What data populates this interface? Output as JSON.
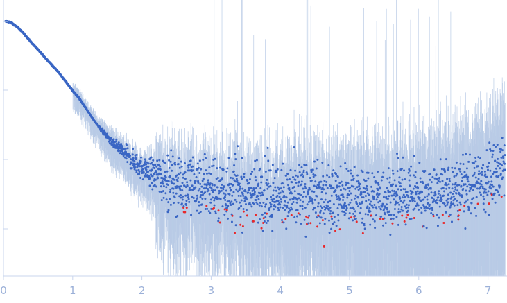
{
  "chart_data": {
    "type": "scatter",
    "title": "",
    "xlabel": "",
    "ylabel": "",
    "y_scale": "log",
    "grid": false,
    "legend": "none",
    "xlim": [
      0,
      7.25
    ],
    "ylim_decades": [
      -3.7,
      0.3
    ],
    "x_ticks": [
      "0",
      "1",
      "2",
      "3",
      "4",
      "5",
      "6",
      "7"
    ],
    "colors": {
      "points": "#3a66c4",
      "outliers": "#e8282b",
      "error_bars": "#b9cbe6",
      "axis": "#c9d6ee",
      "tick_text": "#9bb0d8"
    },
    "series": [
      {
        "name": "",
        "x": [
          0.05,
          0.1,
          0.2,
          0.3,
          0.4,
          0.5,
          0.6,
          0.7,
          0.8,
          0.9,
          1.0,
          1.1,
          1.2,
          1.3,
          1.4,
          1.5,
          1.6,
          1.7,
          1.8,
          1.9,
          2.0,
          2.2,
          2.4,
          2.6,
          2.8,
          3.0,
          3.5,
          4.0,
          4.5,
          5.0,
          5.5,
          6.0,
          6.5,
          7.0,
          7.2
        ],
        "log10_intensity": [
          0.0,
          -0.01,
          -0.08,
          -0.18,
          -0.3,
          -0.41,
          -0.52,
          -0.63,
          -0.74,
          -0.87,
          -1.0,
          -1.12,
          -1.27,
          -1.42,
          -1.55,
          -1.67,
          -1.78,
          -1.87,
          -1.95,
          -2.05,
          -2.12,
          -2.2,
          -2.28,
          -2.33,
          -2.38,
          -2.42,
          -2.48,
          -2.5,
          -2.53,
          -2.55,
          -2.55,
          -2.5,
          -2.45,
          -2.3,
          -2.1
        ]
      }
    ]
  }
}
